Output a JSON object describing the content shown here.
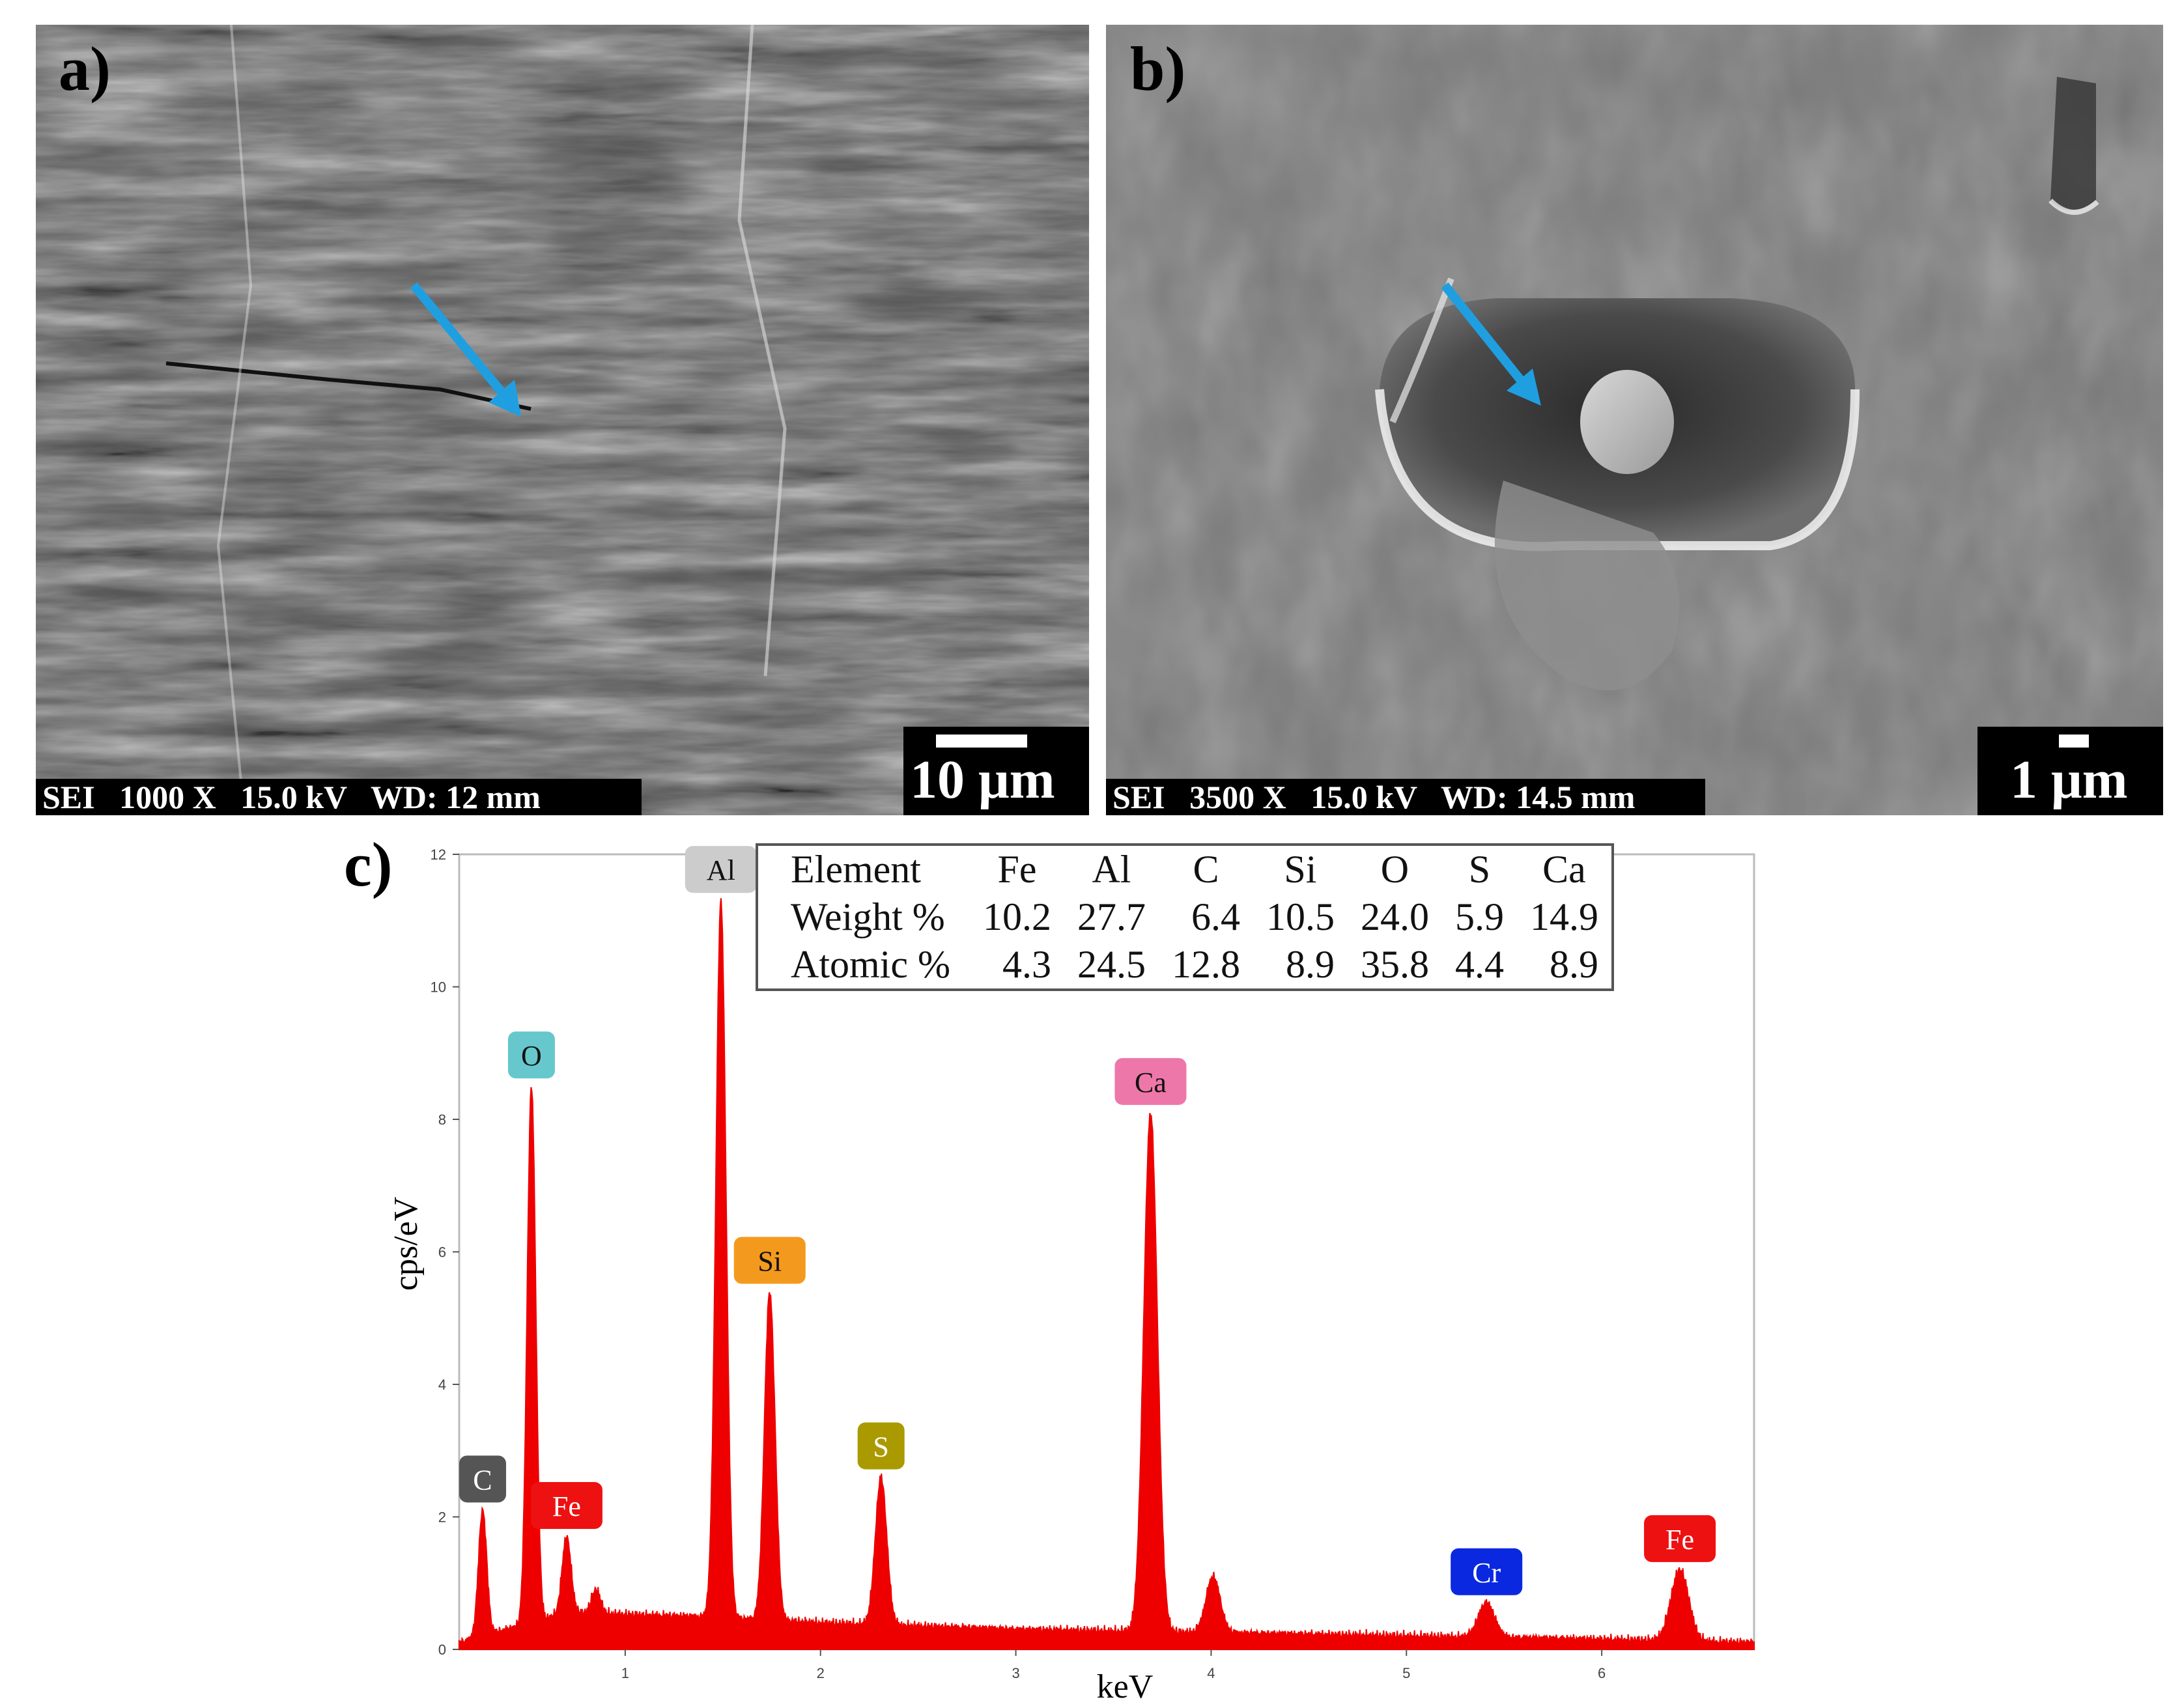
{
  "panels": {
    "a": {
      "label": "a)",
      "info": "SEI   1000 X   15.0 kV   WD: 12 mm",
      "scale": "10 μm"
    },
    "b": {
      "label": "b)",
      "info": "SEI   3500 X   15.0 kV   WD: 14.5 mm",
      "scale": "1 μm"
    },
    "c": {
      "label": "c)"
    }
  },
  "arrow_color": "#1f9fe0",
  "composition_table": {
    "header": "Element",
    "elements": [
      "Fe",
      "Al",
      "C",
      "Si",
      "O",
      "S",
      "Ca"
    ],
    "rows": [
      {
        "label": "Weight %",
        "values": [
          "10.2",
          "27.7",
          "6.4",
          "10.5",
          "24.0",
          "5.9",
          "14.9"
        ]
      },
      {
        "label": "Atomic %",
        "values": [
          "4.3",
          "24.5",
          "12.8",
          "8.9",
          "35.8",
          "4.4",
          "8.9"
        ]
      }
    ]
  },
  "chart_data": {
    "type": "area",
    "title": "",
    "xlabel": "keV",
    "ylabel": "cps/eV",
    "xlim": [
      0.15,
      6.78
    ],
    "ylim": [
      0,
      12
    ],
    "x_ticks": [
      "1",
      "2",
      "3",
      "4",
      "5",
      "6"
    ],
    "y_ticks": [
      "0",
      "2",
      "4",
      "6",
      "8",
      "10",
      "12"
    ],
    "series_color": "#ee0000",
    "grid": false,
    "baseline": [
      {
        "x": 0.15,
        "y": 0.1
      },
      {
        "x": 0.7,
        "y": 0.55
      },
      {
        "x": 1.3,
        "y": 0.5
      },
      {
        "x": 2.0,
        "y": 0.4
      },
      {
        "x": 3.0,
        "y": 0.3
      },
      {
        "x": 4.0,
        "y": 0.25
      },
      {
        "x": 5.0,
        "y": 0.2
      },
      {
        "x": 6.0,
        "y": 0.15
      },
      {
        "x": 6.78,
        "y": 0.1
      }
    ],
    "peaks": [
      {
        "element": "C",
        "x": 0.27,
        "y": 2.1,
        "color": "#555555"
      },
      {
        "element": "O",
        "x": 0.52,
        "y": 8.5,
        "color": "#66c8cc"
      },
      {
        "element": "Fe",
        "x": 0.7,
        "y": 1.7,
        "color": "#ee1111"
      },
      {
        "element": "",
        "x": 0.85,
        "y": 0.9,
        "color": ""
      },
      {
        "element": "Al",
        "x": 1.49,
        "y": 11.3,
        "color": "#cccccc"
      },
      {
        "element": "Si",
        "x": 1.74,
        "y": 5.4,
        "color": "#f39a1e"
      },
      {
        "element": "S",
        "x": 2.31,
        "y": 2.6,
        "color": "#aa9a00"
      },
      {
        "element": "Ca",
        "x": 3.69,
        "y": 8.1,
        "color": "#ee77aa"
      },
      {
        "element": "",
        "x": 4.01,
        "y": 1.1,
        "color": ""
      },
      {
        "element": "Cr",
        "x": 5.41,
        "y": 0.7,
        "color": "#0a28e0"
      },
      {
        "element": "Fe",
        "x": 6.4,
        "y": 1.2,
        "color": "#ee1111"
      }
    ]
  }
}
